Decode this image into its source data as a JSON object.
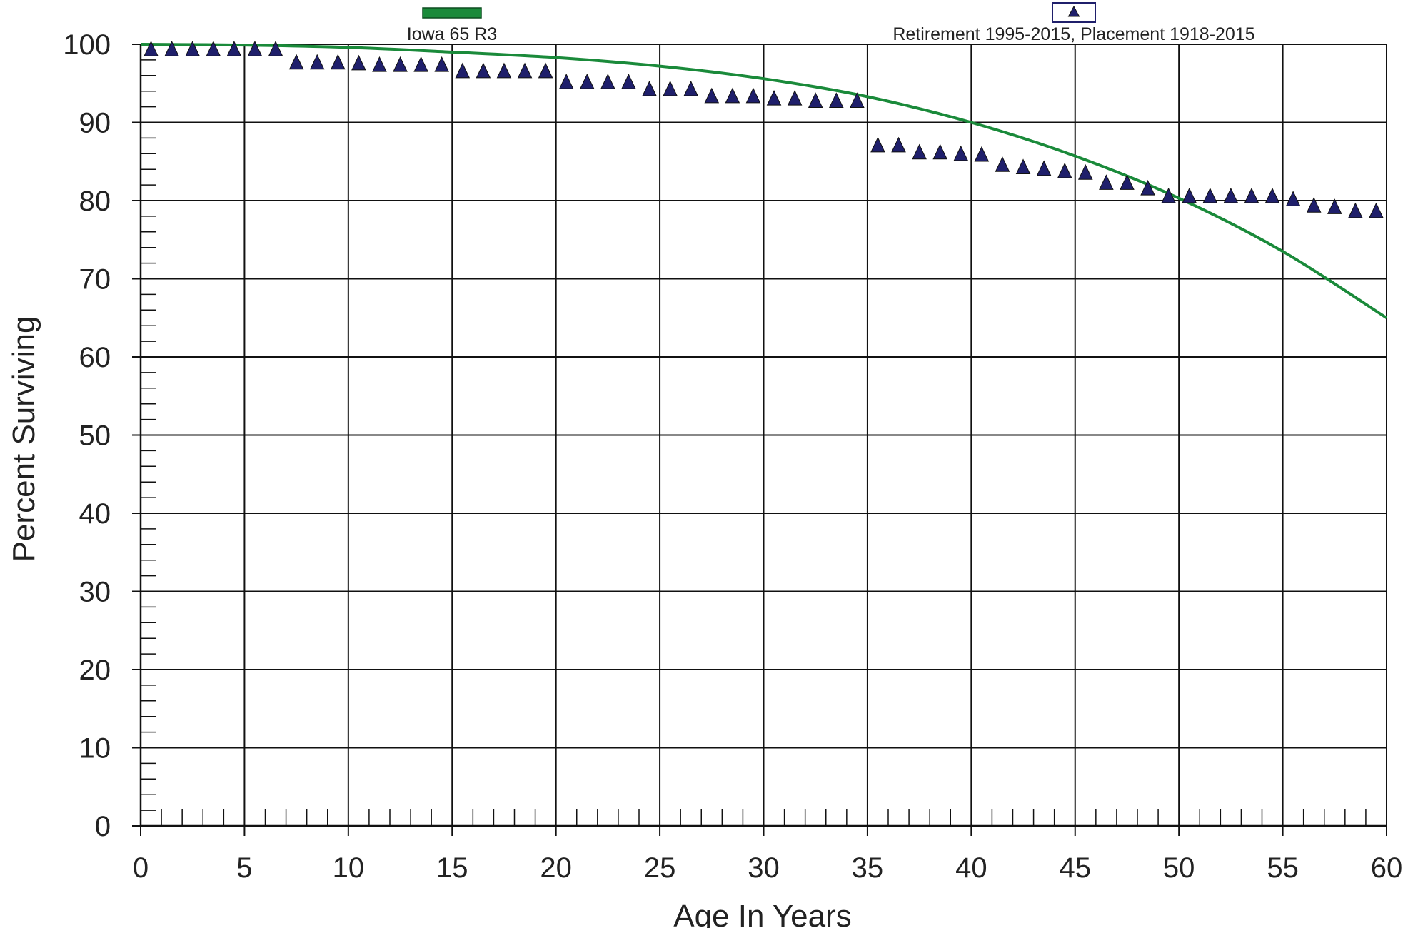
{
  "chart_data": {
    "type": "scatter",
    "xlabel": "Age In Years",
    "ylabel": "Percent Surviving",
    "xlim": [
      0,
      60
    ],
    "ylim": [
      0,
      100
    ],
    "x_ticks": [
      0,
      5,
      10,
      15,
      20,
      25,
      30,
      35,
      40,
      45,
      50,
      55,
      60
    ],
    "y_ticks": [
      0,
      10,
      20,
      30,
      40,
      50,
      60,
      70,
      80,
      90,
      100
    ],
    "grid": true,
    "legend_placement": "top",
    "series": [
      {
        "name": "Iowa 65 R3",
        "kind": "line",
        "color": "#1a8a3a",
        "x": [
          0,
          5,
          10,
          15,
          20,
          25,
          30,
          35,
          40,
          45,
          50,
          55,
          60
        ],
        "y": [
          100,
          99.9,
          99.6,
          99.0,
          98.3,
          97.2,
          95.6,
          93.3,
          90.0,
          85.7,
          80.3,
          73.5,
          65.0
        ]
      },
      {
        "name": "Retirement 1995-2015, Placement 1918-2015",
        "kind": "markers",
        "marker": "triangle",
        "color": "#1f1f6b",
        "x": [
          0.5,
          1.5,
          2.5,
          3.5,
          4.5,
          5.5,
          6.5,
          7.5,
          8.5,
          9.5,
          10.5,
          11.5,
          12.5,
          13.5,
          14.5,
          15.5,
          16.5,
          17.5,
          18.5,
          19.5,
          20.5,
          21.5,
          22.5,
          23.5,
          24.5,
          25.5,
          26.5,
          27.5,
          28.5,
          29.5,
          30.5,
          31.5,
          32.5,
          33.5,
          34.5,
          35.5,
          36.5,
          37.5,
          38.5,
          39.5,
          40.5,
          41.5,
          42.5,
          43.5,
          44.5,
          45.5,
          46.5,
          47.5,
          48.5,
          49.5,
          50.5,
          51.5,
          52.5,
          53.5,
          54.5,
          55.5,
          56.5,
          57.5,
          58.5,
          59.5
        ],
        "y": [
          99.8,
          99.8,
          99.8,
          99.8,
          99.8,
          99.8,
          99.8,
          98.1,
          98.1,
          98.1,
          98.0,
          97.8,
          97.8,
          97.8,
          97.8,
          97.0,
          97.0,
          97.0,
          97.0,
          97.0,
          95.6,
          95.6,
          95.6,
          95.6,
          94.7,
          94.7,
          94.7,
          93.8,
          93.8,
          93.8,
          93.5,
          93.5,
          93.2,
          93.2,
          93.2,
          87.5,
          87.5,
          86.6,
          86.6,
          86.4,
          86.3,
          85.0,
          84.7,
          84.5,
          84.2,
          84.0,
          82.7,
          82.7,
          82.0,
          81.0,
          81.0,
          81.0,
          81.0,
          81.0,
          81.0,
          80.6,
          79.8,
          79.6,
          79.1,
          79.1
        ]
      }
    ]
  }
}
